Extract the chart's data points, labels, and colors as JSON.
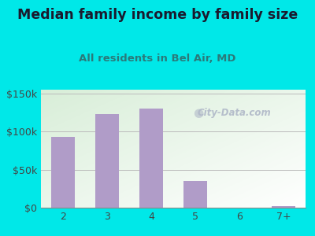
{
  "title": "Median family income by family size",
  "subtitle": "All residents in Bel Air, MD",
  "categories": [
    "2",
    "3",
    "4",
    "5",
    "6",
    "7+"
  ],
  "values": [
    93000,
    123000,
    130000,
    35000,
    0,
    2000
  ],
  "bar_color": "#b09cc8",
  "background_color": "#00e8e8",
  "yticks": [
    0,
    50000,
    100000,
    150000
  ],
  "ytick_labels": [
    "$0",
    "$50k",
    "$100k",
    "$150k"
  ],
  "ylim": [
    0,
    155000
  ],
  "title_color": "#1a1a2e",
  "subtitle_color": "#2a7a7a",
  "watermark_text": "City-Data.com",
  "watermark_color": "#b0b8c8",
  "title_fontsize": 12.5,
  "subtitle_fontsize": 9.5,
  "tick_fontsize": 9
}
